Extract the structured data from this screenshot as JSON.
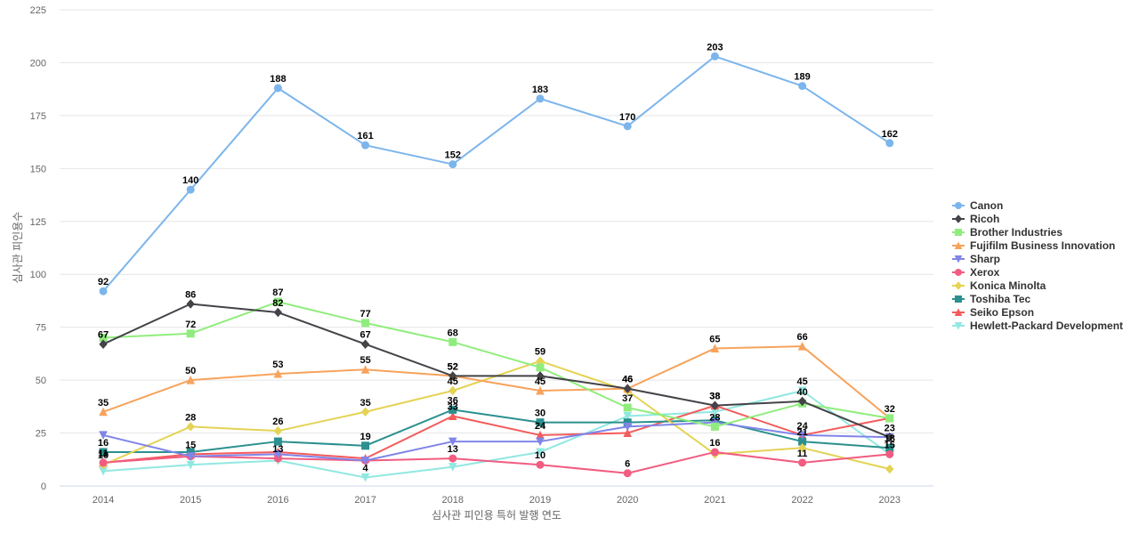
{
  "chart_data": {
    "type": "line",
    "xlabel": "심사관 피인용 특허 발행 연도",
    "ylabel": "심사관 피인용수",
    "ylim": [
      0,
      225
    ],
    "yticks": [
      0,
      25,
      50,
      75,
      100,
      125,
      150,
      175,
      200,
      225
    ],
    "x": [
      "2014",
      "2015",
      "2016",
      "2017",
      "2018",
      "2019",
      "2020",
      "2021",
      "2022",
      "2023"
    ],
    "grid": true,
    "legend_position": "right",
    "series": [
      {
        "name": "Canon",
        "color": "#7cb5ec",
        "marker": "circle",
        "values": [
          92,
          140,
          188,
          161,
          152,
          183,
          170,
          203,
          189,
          162
        ]
      },
      {
        "name": "Ricoh",
        "color": "#434348",
        "marker": "diamond",
        "values": [
          67,
          86,
          82,
          67,
          52,
          52,
          46,
          38,
          40,
          23
        ]
      },
      {
        "name": "Brother Industries",
        "color": "#90ed7d",
        "marker": "square",
        "values": [
          70,
          72,
          87,
          77,
          68,
          56,
          37,
          28,
          39,
          32
        ]
      },
      {
        "name": "Fujifilm Business Innovation",
        "color": "#f7a35c",
        "marker": "triangle",
        "values": [
          35,
          50,
          53,
          55,
          52,
          45,
          46,
          65,
          66,
          32
        ]
      },
      {
        "name": "Sharp",
        "color": "#8085e9",
        "marker": "triangle-down",
        "values": [
          24,
          14,
          15,
          12,
          21,
          21,
          28,
          30,
          24,
          23
        ]
      },
      {
        "name": "Xerox",
        "color": "#f15c80",
        "marker": "circle",
        "values": [
          11,
          14,
          13,
          12,
          13,
          10,
          6,
          16,
          11,
          15
        ]
      },
      {
        "name": "Konica Minolta",
        "color": "#e4d354",
        "marker": "diamond",
        "values": [
          10,
          28,
          26,
          35,
          45,
          59,
          45,
          15,
          18,
          8
        ]
      },
      {
        "name": "Toshiba Tec",
        "color": "#2b908f",
        "marker": "square",
        "values": [
          16,
          16,
          21,
          19,
          36,
          30,
          30,
          31,
          21,
          18
        ]
      },
      {
        "name": "Seiko Epson",
        "color": "#f45b5b",
        "marker": "triangle",
        "values": [
          11,
          15,
          16,
          13,
          33,
          24,
          25,
          38,
          24,
          32
        ]
      },
      {
        "name": "Hewlett-Packard Development",
        "color": "#91e8e1",
        "marker": "triangle-down",
        "values": [
          7,
          10,
          12,
          4,
          9,
          16,
          33,
          35,
          45,
          15
        ]
      }
    ],
    "data_labels": [
      {
        "series": 0,
        "points": [
          0,
          1,
          2,
          3,
          4,
          5,
          6,
          7,
          8,
          9
        ]
      },
      {
        "series": 1,
        "points": [
          0,
          1,
          2,
          3,
          4,
          6,
          7,
          8,
          9
        ]
      },
      {
        "series": 2,
        "points": [
          1,
          2,
          3,
          4,
          6,
          7
        ]
      },
      {
        "series": 3,
        "points": [
          0,
          1,
          2,
          3,
          4,
          5,
          6,
          7,
          8,
          9
        ]
      },
      {
        "series": 5,
        "points": [
          2,
          4,
          5,
          6,
          7,
          8,
          9
        ]
      },
      {
        "series": 6,
        "points": [
          0,
          1,
          2,
          3,
          4,
          5
        ]
      },
      {
        "series": 7,
        "points": [
          0,
          3,
          4,
          5,
          8,
          9
        ]
      },
      {
        "series": 8,
        "points": [
          0,
          1,
          4,
          5,
          7,
          8
        ]
      },
      {
        "series": 9,
        "points": [
          3,
          8
        ]
      }
    ]
  }
}
